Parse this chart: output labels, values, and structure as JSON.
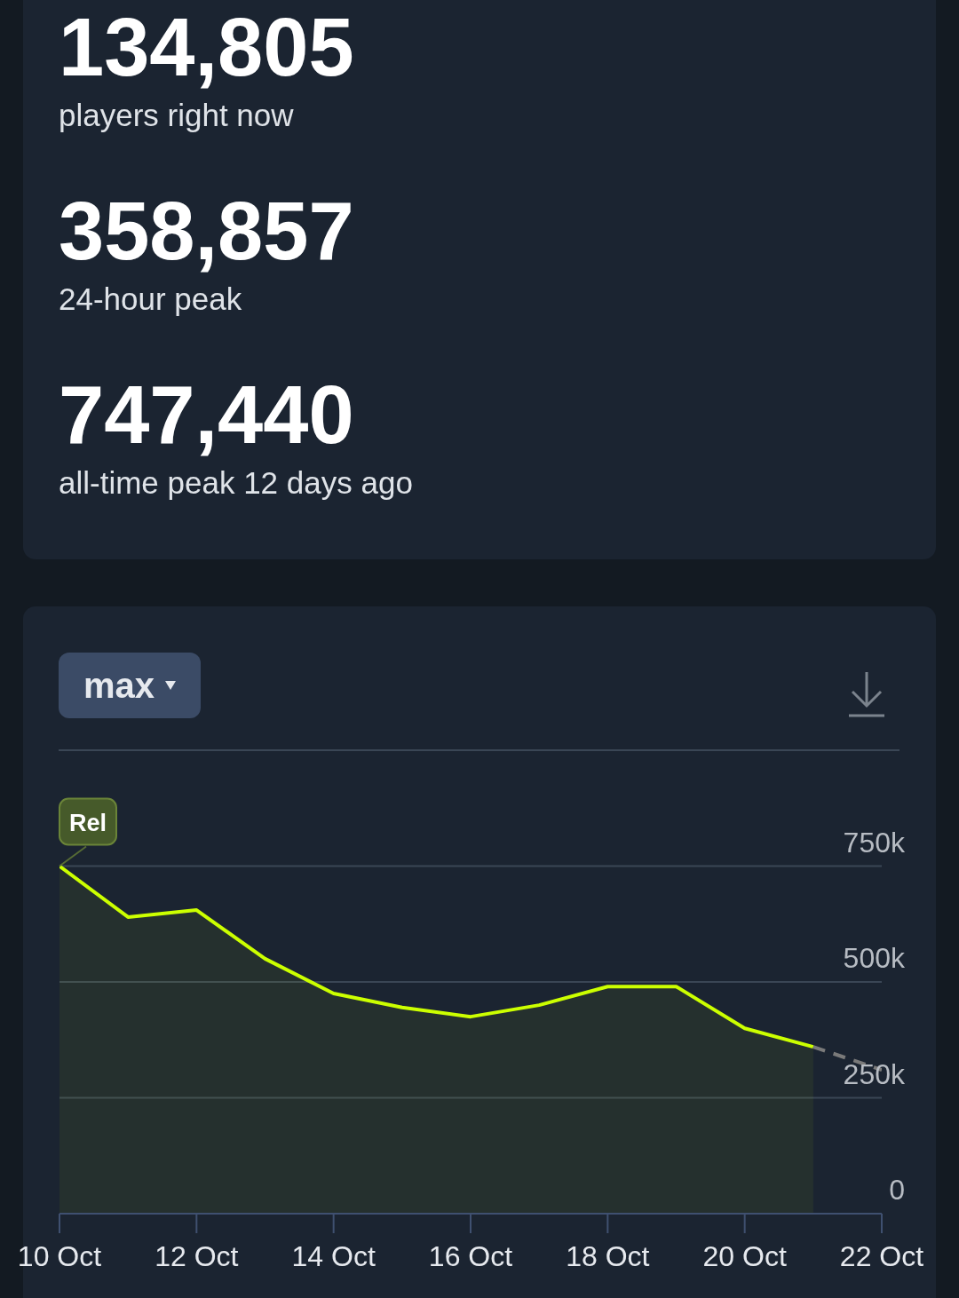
{
  "chart_data": [
    {
      "type": "other",
      "annotations": [
        "134,805",
        "players right now",
        "358,857",
        "24-hour peak",
        "747,440",
        "all-time peak 12 days ago"
      ]
    },
    {
      "type": "area",
      "annotations": [
        "max",
        {
          "text": "Rel",
          "x": "--10-10",
          "y": 750000
        }
      ],
      "series": [
        {
          "type": "area",
          "color": "#ccff00",
          "x": [
            "--10-10",
            "--10-11",
            "--10-12",
            "--10-13",
            "--10-14",
            "--10-15",
            "--10-16",
            "--10-17",
            "--10-18",
            "--10-19",
            "--10-20",
            "--10-21"
          ],
          "values": [
            750000,
            640000,
            655000,
            550000,
            475000,
            445000,
            425000,
            450000,
            490000,
            490000,
            400000,
            360000
          ]
        },
        {
          "type": "line",
          "color": "#7a7a7a",
          "line_style": "dashed",
          "x": [
            "--10-21",
            "--10-22"
          ],
          "values": [
            360000,
            310000
          ]
        }
      ],
      "xlim": [
        "--10-10",
        "--10-22"
      ],
      "xticks": [
        {
          "value": "--10-10",
          "label": "10 Oct"
        },
        {
          "value": "--10-12",
          "label": "12 Oct"
        },
        {
          "value": "--10-14",
          "label": "14 Oct"
        },
        {
          "value": "--10-16",
          "label": "16 Oct"
        },
        {
          "value": "--10-18",
          "label": "18 Oct"
        },
        {
          "value": "--10-20",
          "label": "20 Oct"
        },
        {
          "value": "--10-22",
          "label": "22 Oct"
        }
      ],
      "ylim": [
        0,
        1000000
      ],
      "yticks": [
        0,
        {
          "value": 250000,
          "label": "250k"
        },
        {
          "value": 500000,
          "label": "500k"
        },
        {
          "value": 750000,
          "label": "750k"
        }
      ],
      "grid": "y"
    }
  ]
}
